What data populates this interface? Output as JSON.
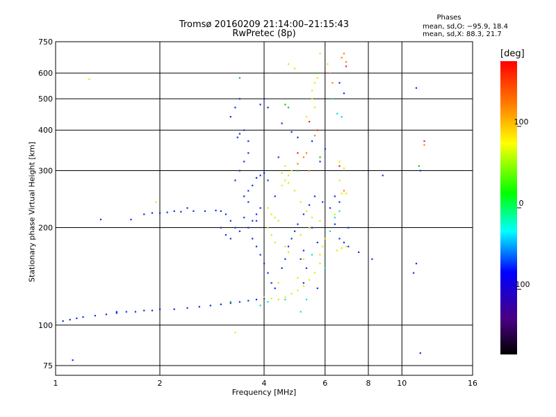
{
  "title": "Tromsø 20160209 21:14:00–21:15:43",
  "subtitle": "RwPretec (8p)",
  "phases": {
    "title": "Phases",
    "o_line": "mean, sd,O: −95.9, 18.4",
    "x_line": "mean, sd,X:  88.3, 21.7"
  },
  "chart_data": {
    "type": "scatter",
    "title": "Tromsø 20160209 21:14:00–21:15:43",
    "subtitle": "RwPretec (8p)",
    "xlabel": "Frequency [MHz]",
    "ylabel": "Stationary phase Virtual Height [km]",
    "xscale": "log",
    "yscale": "log",
    "xlim": [
      1,
      16
    ],
    "ylim": [
      70,
      750
    ],
    "xticks": [
      1,
      2,
      4,
      6,
      8,
      10,
      16
    ],
    "yticks": [
      75,
      100,
      200,
      300,
      400,
      500,
      600,
      750
    ],
    "grid": true,
    "colorbar": {
      "label": "[deg]",
      "range": [
        -180,
        180
      ],
      "ticks": [
        100,
        0,
        -100
      ],
      "colors": [
        "#000000",
        "#4a0082",
        "#0000ff",
        "#00ffff",
        "#00ff00",
        "#ffff00",
        "#ff8000",
        "#ff0000"
      ]
    },
    "series": [
      {
        "color": "#0a2fe6",
        "points": [
          [
            1.0,
            102
          ],
          [
            1.05,
            103
          ],
          [
            1.1,
            104
          ],
          [
            1.15,
            105
          ],
          [
            1.2,
            106
          ],
          [
            1.3,
            107
          ],
          [
            1.4,
            108
          ],
          [
            1.5,
            109
          ],
          [
            1.6,
            110
          ],
          [
            1.7,
            110
          ],
          [
            1.8,
            111
          ],
          [
            1.9,
            111
          ],
          [
            2.0,
            112
          ],
          [
            2.2,
            112
          ],
          [
            2.4,
            113
          ],
          [
            2.6,
            114
          ],
          [
            2.8,
            115
          ],
          [
            3.0,
            116
          ],
          [
            3.2,
            117
          ],
          [
            3.4,
            118
          ],
          [
            3.6,
            119
          ],
          [
            3.8,
            120
          ],
          [
            4.0,
            121
          ],
          [
            1.65,
            212
          ],
          [
            1.8,
            220
          ],
          [
            1.9,
            222
          ],
          [
            2.0,
            222
          ],
          [
            2.1,
            223
          ],
          [
            2.3,
            224
          ],
          [
            2.5,
            225
          ],
          [
            2.7,
            225
          ],
          [
            2.9,
            226
          ],
          [
            3.0,
            225
          ],
          [
            3.1,
            220
          ],
          [
            3.2,
            210
          ],
          [
            3.3,
            200
          ],
          [
            3.4,
            195
          ],
          [
            3.2,
            185
          ],
          [
            3.1,
            190
          ],
          [
            3.2,
            440
          ],
          [
            3.3,
            470
          ],
          [
            3.4,
            500
          ],
          [
            3.35,
            380
          ],
          [
            3.4,
            390
          ],
          [
            3.5,
            400
          ],
          [
            3.6,
            370
          ],
          [
            3.5,
            320
          ],
          [
            3.6,
            340
          ],
          [
            3.4,
            300
          ],
          [
            3.3,
            280
          ],
          [
            3.5,
            250
          ],
          [
            3.6,
            260
          ],
          [
            3.7,
            270
          ],
          [
            3.8,
            285
          ],
          [
            3.9,
            290
          ],
          [
            4.0,
            295
          ],
          [
            4.1,
            280
          ],
          [
            3.9,
            230
          ],
          [
            3.8,
            220
          ],
          [
            3.7,
            210
          ],
          [
            3.6,
            200
          ],
          [
            3.7,
            185
          ],
          [
            3.8,
            175
          ],
          [
            3.9,
            165
          ],
          [
            4.0,
            155
          ],
          [
            4.1,
            145
          ],
          [
            4.2,
            135
          ],
          [
            4.3,
            130
          ],
          [
            4.5,
            150
          ],
          [
            4.6,
            160
          ],
          [
            4.7,
            175
          ],
          [
            4.8,
            185
          ],
          [
            4.9,
            195
          ],
          [
            5.0,
            205
          ],
          [
            5.2,
            220
          ],
          [
            5.4,
            235
          ],
          [
            5.6,
            250
          ],
          [
            5.1,
            160
          ],
          [
            5.2,
            170
          ],
          [
            5.3,
            150
          ],
          [
            3.9,
            480
          ],
          [
            4.0,
            500
          ],
          [
            4.1,
            470
          ],
          [
            4.5,
            420
          ],
          [
            4.8,
            395
          ],
          [
            5.0,
            380
          ],
          [
            5.5,
            370
          ],
          [
            6.0,
            350
          ],
          [
            5.8,
            320
          ],
          [
            6.8,
            180
          ],
          [
            7.0,
            175
          ],
          [
            7.5,
            168
          ],
          [
            6.2,
            230
          ],
          [
            6.4,
            250
          ],
          [
            6.6,
            240
          ],
          [
            6.4,
            205
          ],
          [
            7.0,
            200
          ],
          [
            6.6,
            185
          ],
          [
            1.12,
            78
          ],
          [
            1.5,
            110
          ],
          [
            1.35,
            212
          ],
          [
            3.0,
            200
          ],
          [
            2.4,
            230
          ],
          [
            2.2,
            225
          ],
          [
            5.7,
            180
          ],
          [
            5.5,
            200
          ],
          [
            6.6,
            560
          ],
          [
            6.8,
            520
          ],
          [
            4.4,
            330
          ],
          [
            4.3,
            250
          ],
          [
            3.6,
            240
          ],
          [
            3.8,
            210
          ],
          [
            3.5,
            215
          ],
          [
            5.9,
            240
          ],
          [
            5.7,
            130
          ],
          [
            5.2,
            135
          ],
          [
            11.0,
            155
          ],
          [
            10.8,
            145
          ],
          [
            8.8,
            290
          ],
          [
            8.2,
            160
          ],
          [
            11.0,
            540
          ],
          [
            11.3,
            300
          ],
          [
            11.3,
            82
          ]
        ]
      },
      {
        "color": "#e6e600",
        "points": [
          [
            4.0,
            122
          ],
          [
            4.2,
            121
          ],
          [
            4.4,
            120
          ],
          [
            4.6,
            122
          ],
          [
            4.8,
            125
          ],
          [
            5.0,
            128
          ],
          [
            5.2,
            132
          ],
          [
            5.4,
            138
          ],
          [
            5.6,
            145
          ],
          [
            5.8,
            155
          ],
          [
            5.8,
            165
          ],
          [
            5.9,
            175
          ],
          [
            6.0,
            185
          ],
          [
            4.5,
            270
          ],
          [
            4.6,
            280
          ],
          [
            4.7,
            290
          ],
          [
            4.8,
            300
          ],
          [
            4.6,
            310
          ],
          [
            4.5,
            295
          ],
          [
            4.7,
            275
          ],
          [
            4.9,
            260
          ],
          [
            5.1,
            240
          ],
          [
            5.3,
            225
          ],
          [
            5.5,
            215
          ],
          [
            5.8,
            210
          ],
          [
            4.1,
            230
          ],
          [
            4.2,
            220
          ],
          [
            4.3,
            215
          ],
          [
            4.4,
            210
          ],
          [
            4.1,
            200
          ],
          [
            4.2,
            190
          ],
          [
            4.3,
            180
          ],
          [
            4.6,
            175
          ],
          [
            4.7,
            168
          ],
          [
            5.5,
            530
          ],
          [
            5.6,
            560
          ],
          [
            5.7,
            580
          ],
          [
            5.6,
            600
          ],
          [
            5.5,
            500
          ],
          [
            5.3,
            440
          ],
          [
            5.6,
            470
          ],
          [
            6.5,
            170
          ],
          [
            6.7,
            173
          ],
          [
            6.9,
            175
          ],
          [
            6.6,
            320
          ],
          [
            6.8,
            305
          ],
          [
            6.6,
            280
          ],
          [
            6.4,
            220
          ],
          [
            1.25,
            575
          ],
          [
            1.95,
            240
          ],
          [
            4.7,
            640
          ],
          [
            4.9,
            620
          ],
          [
            5.8,
            690
          ],
          [
            6.1,
            640
          ],
          [
            6.9,
            255
          ],
          [
            6.7,
            255
          ],
          [
            3.3,
            95
          ],
          [
            4.4,
            135
          ],
          [
            5.0,
            140
          ],
          [
            5.2,
            160
          ],
          [
            5.1,
            190
          ],
          [
            5.4,
            200
          ]
        ]
      },
      {
        "color": "#ff7f00",
        "points": [
          [
            5.2,
            330
          ],
          [
            5.3,
            340
          ],
          [
            5.0,
            315
          ],
          [
            5.4,
            300
          ],
          [
            6.8,
            690
          ],
          [
            6.7,
            670
          ],
          [
            6.9,
            650
          ],
          [
            5.6,
            385
          ],
          [
            6.2,
            600
          ],
          [
            6.3,
            560
          ],
          [
            6.8,
            260
          ],
          [
            11.6,
            360
          ]
        ]
      },
      {
        "color": "#00e0e0",
        "points": [
          [
            6.0,
            150
          ],
          [
            6.2,
            195
          ],
          [
            6.4,
            215
          ],
          [
            6.6,
            225
          ],
          [
            4.6,
            120
          ],
          [
            5.1,
            110
          ],
          [
            5.3,
            120
          ],
          [
            5.5,
            165
          ],
          [
            6.5,
            450
          ],
          [
            6.7,
            440
          ],
          [
            6.3,
            500
          ],
          [
            3.9,
            115
          ],
          [
            4.1,
            118
          ]
        ]
      },
      {
        "color": "#20c020",
        "points": [
          [
            4.6,
            480
          ],
          [
            4.7,
            470
          ],
          [
            5.0,
            300
          ],
          [
            5.8,
            330
          ],
          [
            3.2,
            118
          ],
          [
            5.6,
            600
          ],
          [
            3.4,
            580
          ],
          [
            11.2,
            310
          ]
        ]
      },
      {
        "color": "#ff1a1a",
        "points": [
          [
            5.4,
            425
          ],
          [
            5.7,
            400
          ],
          [
            6.6,
            310
          ],
          [
            6.9,
            630
          ],
          [
            5.0,
            340
          ],
          [
            11.6,
            370
          ]
        ]
      }
    ]
  }
}
